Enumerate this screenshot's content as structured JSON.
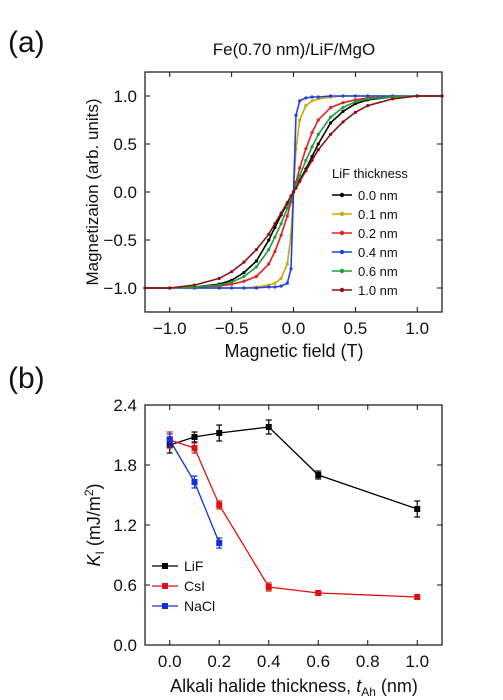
{
  "chart_data": [
    {
      "panel_label": "(a)",
      "type": "line",
      "title": "Fe(0.70 nm)/LiF/MgO",
      "xlabel": "Magnetic field (T)",
      "ylabel": "Magnetizaion (arb. units)",
      "xlim": [
        -1.2,
        1.2
      ],
      "ylim": [
        -1.25,
        1.25
      ],
      "xticks": [
        -1.0,
        -0.5,
        0.0,
        0.5,
        1.0
      ],
      "xtick_labels": [
        "−1.0",
        "−0.5",
        "0.0",
        "0.5",
        "1.0"
      ],
      "yticks": [
        -1.0,
        -0.5,
        0.0,
        0.5,
        1.0
      ],
      "ytick_labels": [
        "−1.0",
        "−0.5",
        "0.0",
        "0.5",
        "1.0"
      ],
      "grid": false,
      "legend_title": "LiF thickness",
      "legend_position": "right",
      "x": [
        -1.2,
        -1.0,
        -0.8,
        -0.6,
        -0.5,
        -0.4,
        -0.3,
        -0.2,
        -0.15,
        -0.1,
        -0.05,
        -0.02,
        0.0,
        0.02,
        0.05,
        0.1,
        0.15,
        0.2,
        0.3,
        0.4,
        0.5,
        0.6,
        0.8,
        1.0,
        1.2
      ],
      "series": [
        {
          "name": "0.0 nm",
          "color": "#000000",
          "values": [
            -1.0,
            -1.0,
            -0.99,
            -0.96,
            -0.92,
            -0.84,
            -0.72,
            -0.5,
            -0.37,
            -0.24,
            -0.12,
            -0.05,
            0.0,
            0.05,
            0.12,
            0.24,
            0.37,
            0.5,
            0.72,
            0.84,
            0.92,
            0.96,
            0.99,
            1.0,
            1.0
          ]
        },
        {
          "name": "0.1 nm",
          "color": "#c9a800",
          "values": [
            -1.0,
            -1.0,
            -1.0,
            -1.0,
            -1.0,
            -1.0,
            -0.99,
            -0.97,
            -0.95,
            -0.9,
            -0.75,
            -0.45,
            0.0,
            0.45,
            0.75,
            0.9,
            0.95,
            0.97,
            0.99,
            1.0,
            1.0,
            1.0,
            1.0,
            1.0,
            1.0
          ]
        },
        {
          "name": "0.2 nm",
          "color": "#e02020",
          "values": [
            -1.0,
            -1.0,
            -0.99,
            -0.98,
            -0.96,
            -0.93,
            -0.88,
            -0.75,
            -0.62,
            -0.45,
            -0.25,
            -0.1,
            0.0,
            0.1,
            0.25,
            0.45,
            0.62,
            0.75,
            0.88,
            0.93,
            0.96,
            0.98,
            0.99,
            1.0,
            1.0
          ]
        },
        {
          "name": "0.4 nm",
          "color": "#2040e0",
          "values": [
            -1.0,
            -1.0,
            -1.0,
            -1.0,
            -1.0,
            -1.0,
            -1.0,
            -0.99,
            -0.99,
            -0.98,
            -0.95,
            -0.8,
            0.0,
            0.8,
            0.95,
            0.98,
            0.99,
            0.99,
            1.0,
            1.0,
            1.0,
            1.0,
            1.0,
            1.0,
            1.0
          ]
        },
        {
          "name": "0.6 nm",
          "color": "#1f9e3a",
          "values": [
            -1.0,
            -1.0,
            -0.99,
            -0.97,
            -0.94,
            -0.88,
            -0.78,
            -0.6,
            -0.47,
            -0.33,
            -0.17,
            -0.07,
            0.0,
            0.07,
            0.17,
            0.33,
            0.47,
            0.6,
            0.78,
            0.88,
            0.94,
            0.97,
            0.99,
            1.0,
            1.0
          ]
        },
        {
          "name": "1.0 nm",
          "color": "#8b1010",
          "values": [
            -1.0,
            -1.0,
            -0.97,
            -0.9,
            -0.83,
            -0.73,
            -0.6,
            -0.44,
            -0.33,
            -0.22,
            -0.11,
            -0.04,
            0.0,
            0.04,
            0.11,
            0.22,
            0.33,
            0.44,
            0.6,
            0.73,
            0.83,
            0.9,
            0.97,
            1.0,
            1.0
          ]
        }
      ]
    },
    {
      "panel_label": "(b)",
      "type": "line",
      "title": "",
      "xlabel_main": "Alkali halide thickness, ",
      "xlabel_var": "t",
      "xlabel_sub": "Ah",
      "xlabel_unit": " (nm)",
      "ylabel_var": "K",
      "ylabel_sub": "I",
      "ylabel_unit": " (mJ/m",
      "ylabel_sup": "2",
      "ylabel_close": ")",
      "xlim": [
        -0.1,
        1.1
      ],
      "ylim": [
        0.0,
        2.4
      ],
      "xticks": [
        0.0,
        0.2,
        0.4,
        0.6,
        0.8,
        1.0
      ],
      "xtick_labels": [
        "0.0",
        "0.2",
        "0.4",
        "0.6",
        "0.8",
        "1.0"
      ],
      "yticks": [
        0.0,
        0.6,
        1.2,
        1.8,
        2.4
      ],
      "ytick_labels": [
        "0.0",
        "0.6",
        "1.2",
        "1.8",
        "2.4"
      ],
      "grid": false,
      "legend_position": "bottom-left",
      "series": [
        {
          "name": "LiF",
          "color": "#000000",
          "x": [
            0.0,
            0.1,
            0.2,
            0.4,
            0.6,
            1.0
          ],
          "values": [
            2.0,
            2.08,
            2.12,
            2.18,
            1.7,
            1.36
          ],
          "errors": [
            0.08,
            0.05,
            0.08,
            0.07,
            0.04,
            0.08
          ]
        },
        {
          "name": "CsI",
          "color": "#e01010",
          "x": [
            0.0,
            0.1,
            0.2,
            0.4,
            0.6,
            1.0
          ],
          "values": [
            2.05,
            1.97,
            1.4,
            0.58,
            0.52,
            0.48
          ],
          "errors": [
            0.08,
            0.05,
            0.04,
            0.04,
            0.02,
            0.02
          ]
        },
        {
          "name": "NaCl",
          "color": "#1030e0",
          "x": [
            0.0,
            0.1,
            0.2
          ],
          "values": [
            2.05,
            1.63,
            1.02
          ],
          "errors": [
            0.06,
            0.06,
            0.05
          ]
        }
      ]
    }
  ]
}
